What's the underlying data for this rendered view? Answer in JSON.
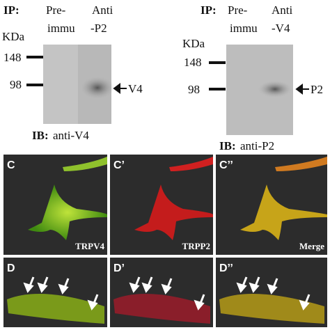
{
  "blots": [
    {
      "ip_label": "IP:",
      "lanes": [
        [
          "Pre-",
          "immu"
        ],
        [
          "Anti",
          "-P2"
        ]
      ],
      "unit": "KDa",
      "markers": [
        "148",
        "98"
      ],
      "band": "V4",
      "ib_label": "IB:",
      "ib_antibody": "anti-V4"
    },
    {
      "ip_label": "IP:",
      "lanes": [
        [
          "Pre-",
          "immu"
        ],
        [
          "Anti",
          "-V4"
        ]
      ],
      "unit": "KDa",
      "markers": [
        "148",
        "98"
      ],
      "band": "P2",
      "ib_label": "IB:",
      "ib_antibody": "anti-P2"
    }
  ],
  "panels": [
    {
      "letter": "C",
      "caption": "TRPV4"
    },
    {
      "letter": "C’",
      "caption": "TRPP2"
    },
    {
      "letter": "C’’",
      "caption": "Merge"
    },
    {
      "letter": "D"
    },
    {
      "letter": "D’"
    },
    {
      "letter": "D’’"
    }
  ]
}
